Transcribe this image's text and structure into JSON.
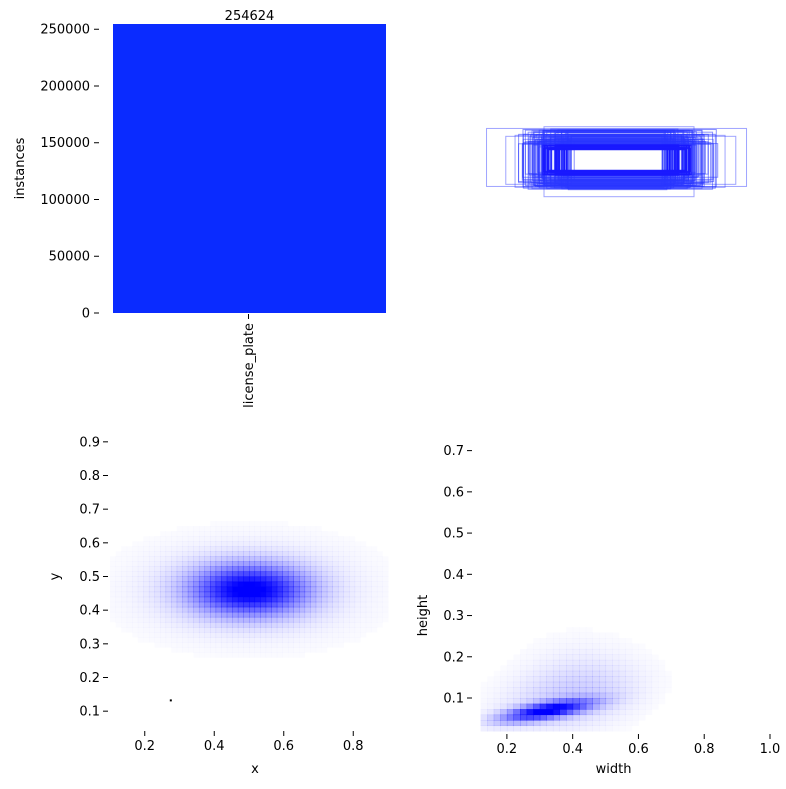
{
  "colors": {
    "bar": "#0a2bff",
    "box_stroke": "#2a36ff",
    "density": "#0000ff",
    "background": "#ffffff",
    "text": "#000000"
  },
  "chart_data": [
    {
      "type": "bar",
      "categories": [
        "license_plate"
      ],
      "values": [
        254624
      ],
      "value_label": "254624",
      "ylabel": "instances",
      "xlabel": "",
      "ylim": [
        0,
        254624
      ],
      "yticks": [
        0,
        50000,
        100000,
        150000,
        200000,
        250000
      ],
      "ytick_labels": [
        "0",
        "50000",
        "100000",
        "150000",
        "200000",
        "250000"
      ],
      "grid": false
    },
    {
      "type": "scatter",
      "description_type": "overlaid bounding boxes",
      "note": "",
      "grid": false
    },
    {
      "type": "heatmap",
      "xlabel": "x",
      "ylabel": "y",
      "xlim": [
        0.1,
        0.9
      ],
      "ylim": [
        0.05,
        0.95
      ],
      "xticks": [
        0.2,
        0.4,
        0.6,
        0.8
      ],
      "xtick_labels": [
        "0.2",
        "0.4",
        "0.6",
        "0.8"
      ],
      "yticks": [
        0.1,
        0.2,
        0.3,
        0.4,
        0.5,
        0.6,
        0.7,
        0.8,
        0.9
      ],
      "ytick_labels": [
        "0.1",
        "0.2",
        "0.3",
        "0.4",
        "0.5",
        "0.6",
        "0.7",
        "0.8",
        "0.9"
      ],
      "peak": {
        "x": 0.5,
        "y": 0.46
      },
      "spread": {
        "x": 0.11,
        "y": 0.05
      },
      "grid": false
    },
    {
      "type": "heatmap",
      "xlabel": "width",
      "ylabel": "height",
      "xlim": [
        0.1,
        1.0
      ],
      "ylim": [
        0.02,
        0.75
      ],
      "xticks": [
        0.2,
        0.4,
        0.6,
        0.8,
        1.0
      ],
      "xtick_labels": [
        "0.2",
        "0.4",
        "0.6",
        "0.8",
        "1.0"
      ],
      "yticks": [
        0.1,
        0.2,
        0.3,
        0.4,
        0.5,
        0.6,
        0.7
      ],
      "ytick_labels": [
        "0.1",
        "0.2",
        "0.3",
        "0.4",
        "0.5",
        "0.6",
        "0.7"
      ],
      "trend": [
        [
          0.14,
          0.04
        ],
        [
          0.2,
          0.05
        ],
        [
          0.25,
          0.06
        ],
        [
          0.3,
          0.07
        ],
        [
          0.35,
          0.08
        ],
        [
          0.4,
          0.085
        ],
        [
          0.45,
          0.09
        ],
        [
          0.5,
          0.1
        ]
      ],
      "peak": {
        "x": 0.32,
        "y": 0.07
      },
      "grid": false
    }
  ]
}
